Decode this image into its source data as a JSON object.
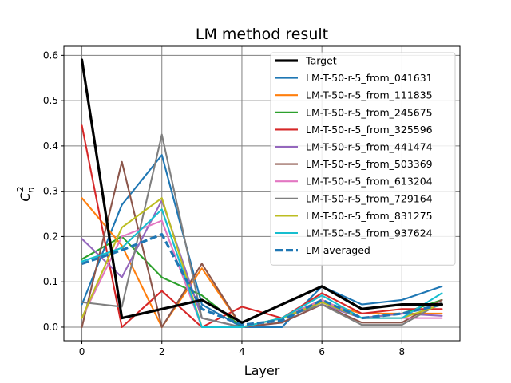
{
  "chart_data": {
    "type": "line",
    "title": "LM method result",
    "xlabel": "Layer",
    "ylabel_base": "C",
    "ylabel_sup": "2",
    "ylabel_sub": "n",
    "xlim": [
      -0.45,
      9.45
    ],
    "ylim": [
      -0.03,
      0.62
    ],
    "xticks": [
      0,
      2,
      4,
      6,
      8
    ],
    "xtick_labels": [
      "0",
      "2",
      "4",
      "6",
      "8"
    ],
    "yticks": [
      0.0,
      0.1,
      0.2,
      0.3,
      0.4,
      0.5,
      0.6
    ],
    "ytick_labels": [
      "0.0",
      "0.1",
      "0.2",
      "0.3",
      "0.4",
      "0.5",
      "0.6"
    ],
    "grid": true,
    "legend_position": "upper-right",
    "x": [
      0,
      1,
      2,
      3,
      4,
      5,
      6,
      7,
      8,
      9
    ],
    "series": [
      {
        "name": "Target",
        "color": "#000000",
        "style": "solid",
        "width": 3.2,
        "values": [
          0.59,
          0.02,
          0.04,
          0.06,
          0.01,
          0.05,
          0.09,
          0.04,
          0.05,
          0.05
        ]
      },
      {
        "name": "LM-T-50-r-5_from_041631",
        "color": "#1f77b4",
        "style": "solid",
        "width": 2.1,
        "values": [
          0.05,
          0.27,
          0.38,
          0.05,
          0.0,
          0.0,
          0.09,
          0.05,
          0.06,
          0.09
        ]
      },
      {
        "name": "LM-T-50-r-5_from_111835",
        "color": "#ff7f0e",
        "style": "solid",
        "width": 2.1,
        "values": [
          0.285,
          0.18,
          0.0,
          0.13,
          0.0,
          0.02,
          0.055,
          0.03,
          0.03,
          0.03
        ]
      },
      {
        "name": "LM-T-50-r-5_from_245675",
        "color": "#2ca02c",
        "style": "solid",
        "width": 2.1,
        "values": [
          0.15,
          0.2,
          0.11,
          0.07,
          0.0,
          0.02,
          0.06,
          0.02,
          0.03,
          0.06
        ]
      },
      {
        "name": "LM-T-50-r-5_from_325596",
        "color": "#d62728",
        "style": "solid",
        "width": 2.1,
        "values": [
          0.445,
          0.0,
          0.08,
          0.0,
          0.045,
          0.02,
          0.075,
          0.03,
          0.04,
          0.04
        ]
      },
      {
        "name": "LM-T-50-r-5_from_441474",
        "color": "#9467bd",
        "style": "solid",
        "width": 2.1,
        "values": [
          0.195,
          0.11,
          0.28,
          0.02,
          0.0,
          0.01,
          0.05,
          0.02,
          0.03,
          0.025
        ]
      },
      {
        "name": "LM-T-50-r-5_from_503369",
        "color": "#8c564b",
        "style": "solid",
        "width": 2.1,
        "values": [
          0.0,
          0.365,
          0.0,
          0.14,
          0.0,
          0.01,
          0.05,
          0.01,
          0.01,
          0.06
        ]
      },
      {
        "name": "LM-T-50-r-5_from_613204",
        "color": "#e377c2",
        "style": "solid",
        "width": 2.1,
        "values": [
          0.02,
          0.2,
          0.235,
          0.0,
          0.0,
          0.02,
          0.06,
          0.02,
          0.02,
          0.02
        ]
      },
      {
        "name": "LM-T-50-r-5_from_729164",
        "color": "#7f7f7f",
        "style": "solid",
        "width": 2.1,
        "values": [
          0.055,
          0.045,
          0.425,
          0.02,
          0.0,
          0.02,
          0.05,
          0.005,
          0.005,
          0.055
        ]
      },
      {
        "name": "LM-T-50-r-5_from_831275",
        "color": "#bcbd22",
        "style": "solid",
        "width": 2.1,
        "values": [
          0.02,
          0.22,
          0.285,
          0.0,
          0.0,
          0.02,
          0.055,
          0.02,
          0.02,
          0.05
        ]
      },
      {
        "name": "LM-T-50-r-5_from_937624",
        "color": "#17becf",
        "style": "solid",
        "width": 2.1,
        "values": [
          0.145,
          0.175,
          0.26,
          0.0,
          0.0,
          0.02,
          0.07,
          0.02,
          0.02,
          0.075
        ]
      },
      {
        "name": "LM averaged",
        "color": "#1f77b4",
        "style": "dashed",
        "width": 3.2,
        "values": [
          0.14,
          0.17,
          0.205,
          0.04,
          0.005,
          0.015,
          0.06,
          0.02,
          0.03,
          0.05
        ]
      }
    ]
  }
}
